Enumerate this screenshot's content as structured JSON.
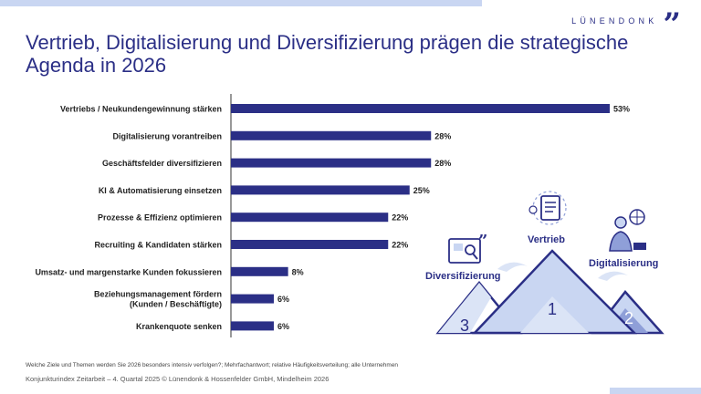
{
  "brand": {
    "name": "LÜNENDONK",
    "mark": "”"
  },
  "title": "Vertrieb, Digitalisierung und Diversifizierung prägen die strategische Agenda in 2026",
  "footnote": "Welche Ziele und Themen werden Sie 2026 besonders intensiv verfolgen?; Mehrfachantwort; relative Häufigkeitsverteilung; alle Unternehmen",
  "source": "Konjunkturindex Zeitarbeit – 4. Quartal 2025 © Lünendonk & Hossenfelder GmbH, Mindelheim 2026",
  "illustration": {
    "labels": {
      "diversifizierung": "Diversifizierung",
      "vertrieb": "Vertrieb",
      "digitalisierung": "Digitalisierung"
    },
    "ranks": {
      "vertrieb": "1",
      "digitalisierung": "2",
      "diversifizierung": "3"
    }
  },
  "colors": {
    "bar": "#2b2f86",
    "accent": "#2b2f86",
    "light": "#c9d6f2"
  },
  "chart_data": {
    "type": "bar",
    "orientation": "horizontal",
    "categories": [
      [
        "Vertriebs / Neukundengewinnung stärken"
      ],
      [
        "Digitalisierung vorantreiben"
      ],
      [
        "Geschäftsfelder diversifizieren"
      ],
      [
        "KI & Automatisierung einsetzen"
      ],
      [
        "Prozesse & Effizienz optimieren"
      ],
      [
        "Recruiting & Kandidaten stärken"
      ],
      [
        "Umsatz- und margenstarke Kunden fokussieren"
      ],
      [
        "Beziehungsmanagement  fördern",
        "(Kunden / Beschäftigte)"
      ],
      [
        "Krankenquote senken"
      ]
    ],
    "values": [
      53,
      28,
      28,
      25,
      22,
      22,
      8,
      6,
      6
    ],
    "value_labels": [
      "53%",
      "28%",
      "28%",
      "25%",
      "22%",
      "22%",
      "8%",
      "6%",
      "6%"
    ],
    "unit": "%",
    "xlim": [
      0,
      53
    ]
  }
}
